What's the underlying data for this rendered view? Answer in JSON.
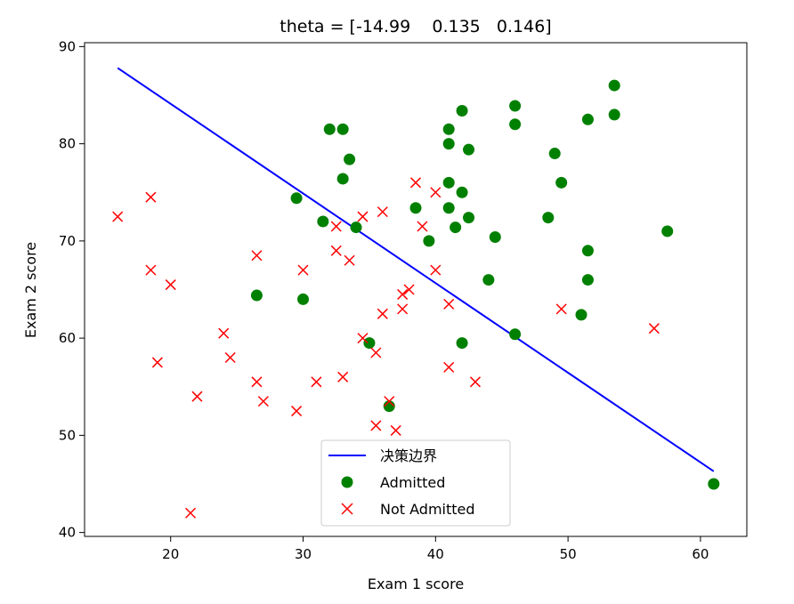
{
  "chart_data": {
    "type": "scatter",
    "title": "theta = [-14.99    0.135   0.146]",
    "xlabel": "Exam 1 score",
    "ylabel": "Exam 2 score",
    "xlim": [
      13.5,
      63.5
    ],
    "ylim": [
      39.6,
      90.4
    ],
    "xticks": [
      20,
      30,
      40,
      50,
      60
    ],
    "yticks": [
      40,
      50,
      60,
      70,
      80,
      90
    ],
    "grid": false,
    "legend_position": "lower center",
    "boundary": {
      "name": "决策边界",
      "color": "#0000ff",
      "x": [
        16.0,
        61.0
      ],
      "y": [
        87.8,
        46.3
      ]
    },
    "series": [
      {
        "name": "Admitted",
        "marker": "circle",
        "color": "#008000",
        "points": [
          [
            32.0,
            81.5
          ],
          [
            33.0,
            81.5
          ],
          [
            33.5,
            78.4
          ],
          [
            33.0,
            76.4
          ],
          [
            29.5,
            74.4
          ],
          [
            31.5,
            72.0
          ],
          [
            34.0,
            71.4
          ],
          [
            26.5,
            64.4
          ],
          [
            30.0,
            64.0
          ],
          [
            35.0,
            59.5
          ],
          [
            36.5,
            53.0
          ],
          [
            38.5,
            73.4
          ],
          [
            39.5,
            70.0
          ],
          [
            41.0,
            81.5
          ],
          [
            41.0,
            80.0
          ],
          [
            42.0,
            83.4
          ],
          [
            42.5,
            79.4
          ],
          [
            41.0,
            76.0
          ],
          [
            42.0,
            75.0
          ],
          [
            41.0,
            73.4
          ],
          [
            42.5,
            72.4
          ],
          [
            41.5,
            71.4
          ],
          [
            44.5,
            70.4
          ],
          [
            44.0,
            66.0
          ],
          [
            42.0,
            59.5
          ],
          [
            46.0,
            60.4
          ],
          [
            46.0,
            83.9
          ],
          [
            46.0,
            82.0
          ],
          [
            49.0,
            79.0
          ],
          [
            49.5,
            76.0
          ],
          [
            48.5,
            72.4
          ],
          [
            51.5,
            82.5
          ],
          [
            53.5,
            86.0
          ],
          [
            53.5,
            83.0
          ],
          [
            51.5,
            69.0
          ],
          [
            51.5,
            66.0
          ],
          [
            51.0,
            62.4
          ],
          [
            57.5,
            71.0
          ],
          [
            61.0,
            45.0
          ]
        ]
      },
      {
        "name": "Not Admitted",
        "marker": "x",
        "color": "#ff0000",
        "points": [
          [
            16.0,
            72.5
          ],
          [
            18.5,
            74.5
          ],
          [
            18.5,
            67.0
          ],
          [
            20.0,
            65.5
          ],
          [
            19.0,
            57.5
          ],
          [
            22.0,
            54.0
          ],
          [
            21.5,
            42.0
          ],
          [
            24.0,
            60.5
          ],
          [
            24.5,
            58.0
          ],
          [
            26.5,
            68.5
          ],
          [
            26.5,
            55.5
          ],
          [
            27.0,
            53.5
          ],
          [
            29.5,
            52.5
          ],
          [
            30.0,
            67.0
          ],
          [
            31.0,
            55.5
          ],
          [
            32.5,
            71.5
          ],
          [
            32.5,
            69.0
          ],
          [
            33.5,
            68.0
          ],
          [
            34.5,
            72.5
          ],
          [
            36.0,
            73.0
          ],
          [
            33.0,
            56.0
          ],
          [
            34.5,
            60.0
          ],
          [
            35.5,
            58.5
          ],
          [
            36.0,
            62.5
          ],
          [
            35.5,
            51.0
          ],
          [
            36.5,
            53.5
          ],
          [
            37.0,
            50.5
          ],
          [
            37.5,
            64.5
          ],
          [
            38.0,
            65.0
          ],
          [
            37.5,
            63.0
          ],
          [
            38.5,
            76.0
          ],
          [
            39.0,
            71.5
          ],
          [
            40.0,
            75.0
          ],
          [
            40.0,
            67.0
          ],
          [
            41.0,
            63.5
          ],
          [
            41.0,
            57.0
          ],
          [
            43.0,
            55.5
          ],
          [
            49.5,
            63.0
          ],
          [
            56.5,
            61.0
          ]
        ]
      }
    ]
  }
}
